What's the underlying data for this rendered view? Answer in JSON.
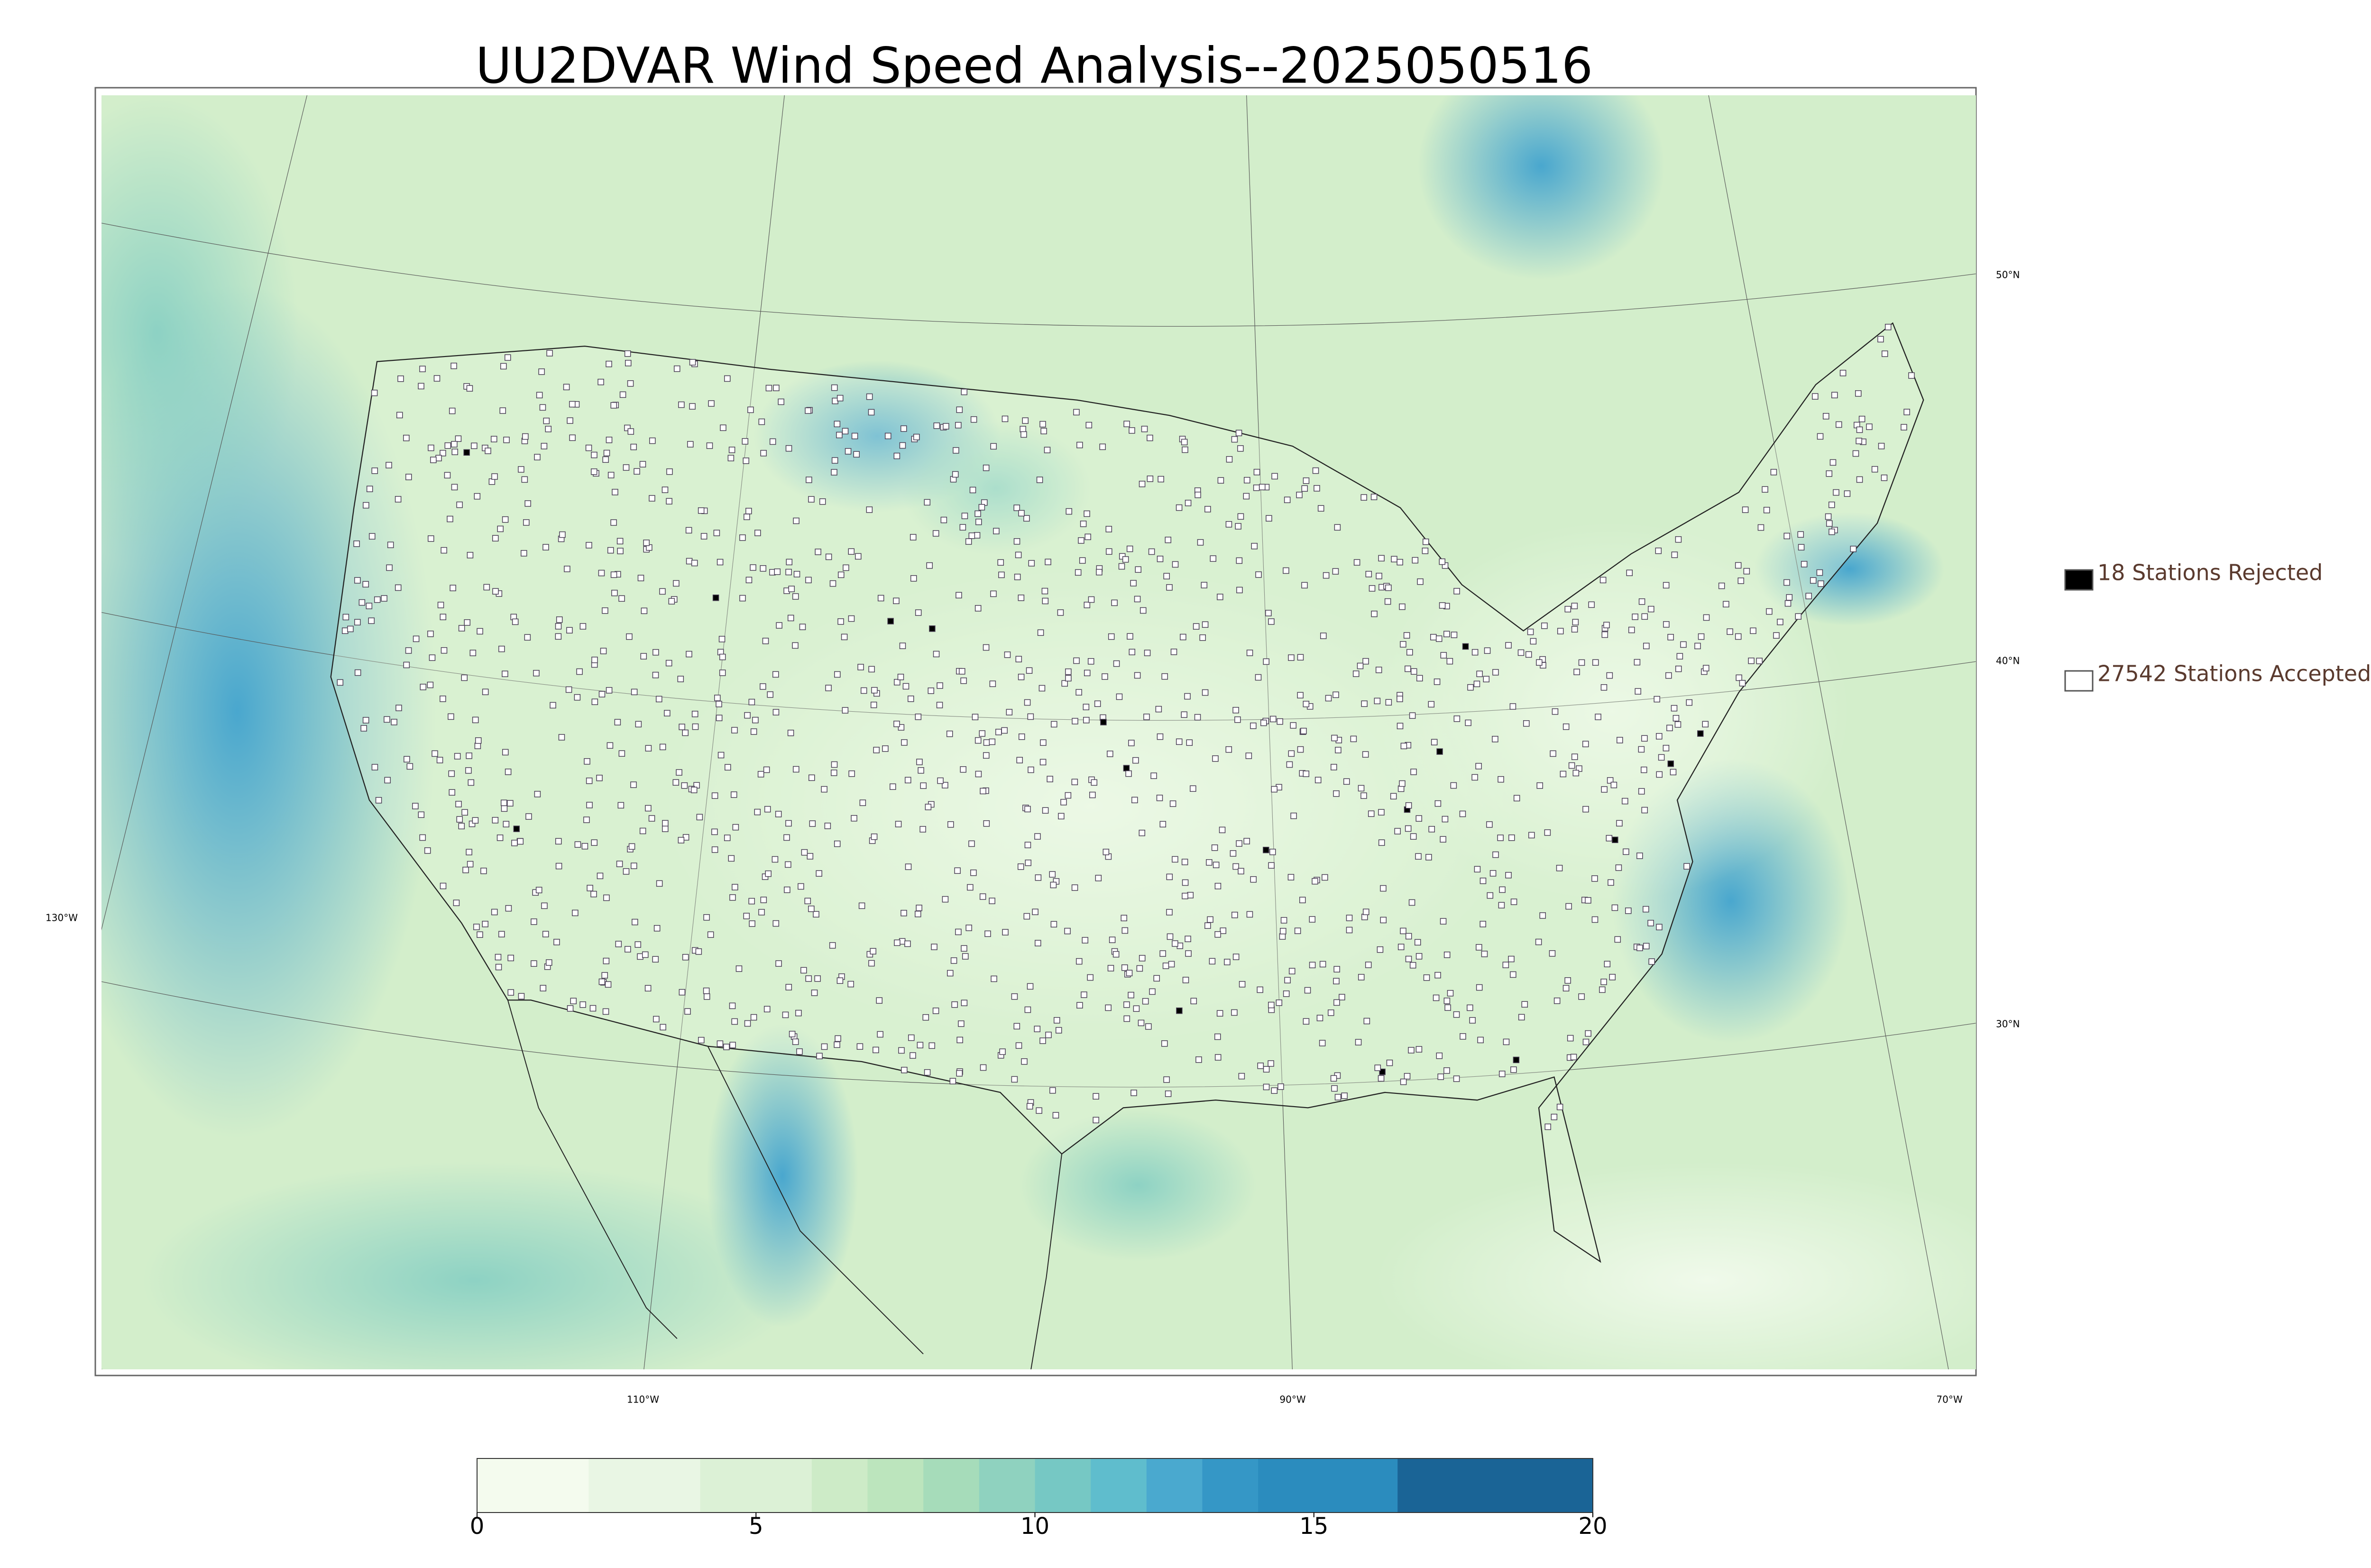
{
  "title": "UU2DVAR Wind Speed Analysis--2025050516",
  "graticule": {
    "lat_labels": [
      "50°N",
      "40°N",
      "30°N"
    ],
    "lon_labels": [
      "130°W",
      "110°W",
      "90°W",
      "70°W"
    ]
  },
  "legend": [
    {
      "label": "18 Stations Rejected",
      "color": "#000000"
    },
    {
      "label": "27542 Stations Accepted",
      "color": "#ffffff"
    }
  ],
  "colorbar": {
    "lim": [
      0,
      20
    ],
    "ticks": [
      0,
      5,
      10,
      15,
      20
    ],
    "bounds": [
      0,
      2,
      4,
      6,
      7,
      8,
      9,
      10,
      11,
      12,
      13,
      14,
      16.5,
      20
    ],
    "colors": [
      "#f4fbee",
      "#e9f6e4",
      "#dcf1d6",
      "#cdebc7",
      "#bce5bd",
      "#a6dcba",
      "#8fd2bf",
      "#76c8c4",
      "#5fbdcd",
      "#4aa9cf",
      "#3597c6",
      "#2b8cbe",
      "#1a6496"
    ]
  }
}
